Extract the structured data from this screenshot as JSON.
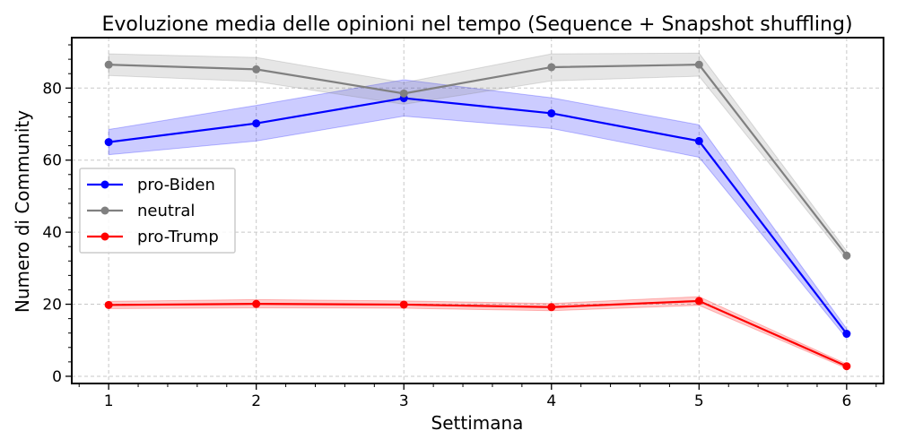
{
  "chart_data": {
    "type": "line",
    "title": "Evoluzione media delle opinioni nel tempo (Sequence + Snapshot shuffling)",
    "xlabel": "Settimana",
    "ylabel": "Numero di Community",
    "x": [
      1,
      2,
      3,
      4,
      5,
      6
    ],
    "xlim": [
      0.75,
      6.25
    ],
    "ylim": [
      -2,
      94
    ],
    "xticks": [
      1,
      2,
      3,
      4,
      5,
      6
    ],
    "yticks": [
      0,
      20,
      40,
      60,
      80
    ],
    "grid": true,
    "legend_position": "center-left",
    "series": [
      {
        "name": "pro-Biden",
        "color": "#0000ff",
        "values": [
          65,
          70.2,
          77.2,
          73,
          65.3,
          11.8
        ],
        "lower": [
          61.5,
          65.3,
          72.2,
          68.8,
          60.8,
          10.5
        ],
        "upper": [
          68.5,
          75.2,
          82.3,
          77.3,
          69.8,
          13.2
        ]
      },
      {
        "name": "neutral",
        "color": "#808080",
        "values": [
          86.5,
          85.2,
          78.5,
          85.8,
          86.5,
          33.5
        ],
        "lower": [
          83.5,
          81.8,
          75.5,
          82,
          83.3,
          32.3
        ],
        "upper": [
          89.5,
          88.5,
          81.5,
          89.5,
          89.7,
          34.8
        ]
      },
      {
        "name": "pro-Trump",
        "color": "#ff0000",
        "values": [
          19.8,
          20.1,
          19.9,
          19.2,
          20.9,
          2.8
        ],
        "lower": [
          18.8,
          19,
          18.9,
          18.2,
          19.7,
          2.2
        ],
        "upper": [
          20.8,
          21.3,
          20.9,
          20.2,
          22.1,
          3.4
        ]
      }
    ]
  }
}
